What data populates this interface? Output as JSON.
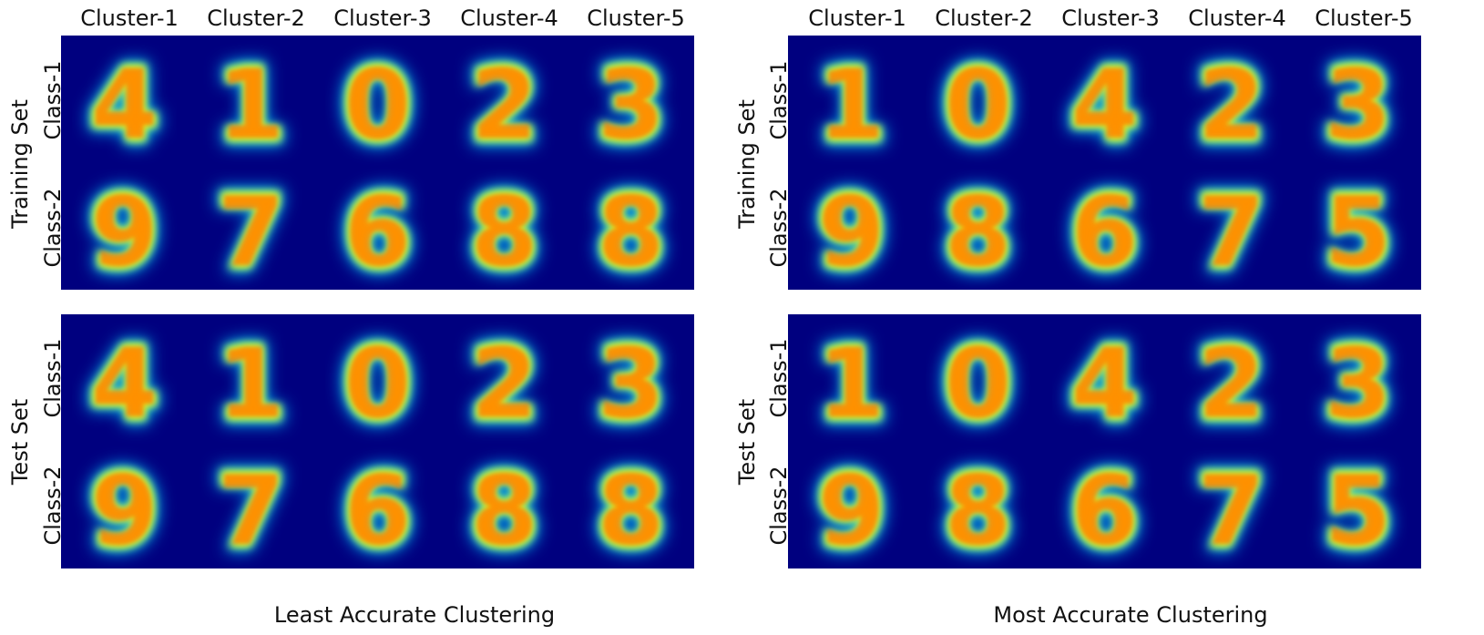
{
  "columns_left": [
    "Cluster-1",
    "Cluster-2",
    "Cluster-3",
    "Cluster-4",
    "Cluster-5"
  ],
  "columns_right": [
    "Cluster-1",
    "Cluster-2",
    "Cluster-3",
    "Cluster-4",
    "Cluster-5"
  ],
  "set_labels": {
    "train": "Training Set",
    "test": "Test Set"
  },
  "class_labels": [
    "Class-1",
    "Class-2"
  ],
  "captions": {
    "left": "Least Accurate Clustering",
    "right": "Most Accurate Clustering"
  },
  "colormap": "jet",
  "colors": {
    "background": "#00007f"
  },
  "panels": {
    "left": {
      "class1_digits": [
        "4",
        "1",
        "0",
        "2",
        "3"
      ],
      "class2_digits": [
        "9",
        "7",
        "6",
        "8",
        "8"
      ]
    },
    "right": {
      "class1_digits": [
        "1",
        "0",
        "4",
        "2",
        "3"
      ],
      "class2_digits": [
        "9",
        "8",
        "6",
        "7",
        "5"
      ]
    }
  }
}
